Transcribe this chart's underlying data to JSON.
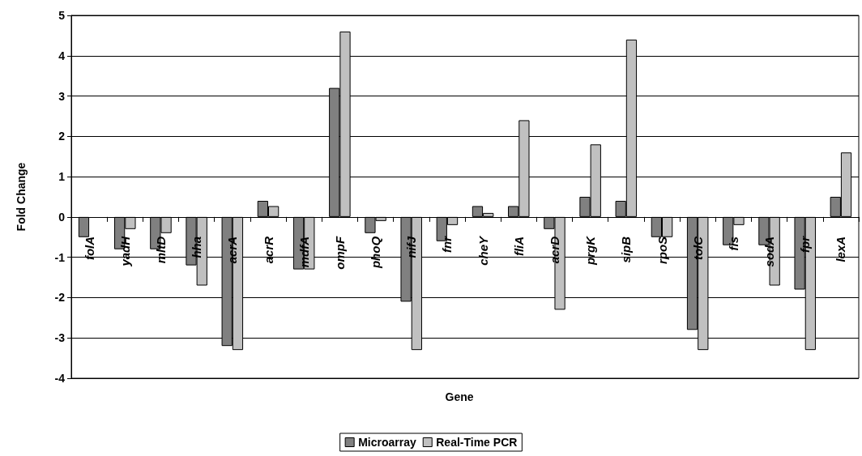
{
  "chart_data": {
    "type": "bar",
    "xlabel": "Gene",
    "ylabel": "Fold Change",
    "categories": [
      "folA",
      "yadH",
      "mltD",
      "hha",
      "acrA",
      "acrR",
      "mdfA",
      "ompF",
      "phoQ",
      "nifJ",
      "fnr",
      "cheY",
      "fliA",
      "acrD",
      "prgK",
      "sipB",
      "rpoS",
      "tolC",
      "fis",
      "sodA",
      "fpr",
      "lexA"
    ],
    "series": [
      {
        "name": "Microarray",
        "color": "#808080",
        "values": [
          -0.5,
          -0.8,
          -0.8,
          -1.2,
          -3.2,
          0.4,
          -1.3,
          3.2,
          -0.4,
          -2.1,
          -0.6,
          0.27,
          0.27,
          -0.3,
          0.5,
          0.4,
          -0.5,
          -2.8,
          -0.7,
          -0.7,
          -1.8,
          0.5
        ]
      },
      {
        "name": "Real-Time PCR",
        "color": "#c0c0c0",
        "values": [
          null,
          -0.3,
          -0.4,
          -1.7,
          -3.3,
          0.27,
          -1.3,
          4.6,
          -0.1,
          -3.3,
          -0.2,
          0.1,
          2.4,
          -2.3,
          1.8,
          4.4,
          -0.5,
          -3.3,
          -0.2,
          -1.7,
          -3.3,
          1.6
        ]
      }
    ],
    "ylim": [
      -4,
      5
    ],
    "yticks": [
      -4,
      -3,
      -2,
      -1,
      0,
      1,
      2,
      3,
      4,
      5
    ],
    "grid": "y",
    "legend": "bottom"
  }
}
